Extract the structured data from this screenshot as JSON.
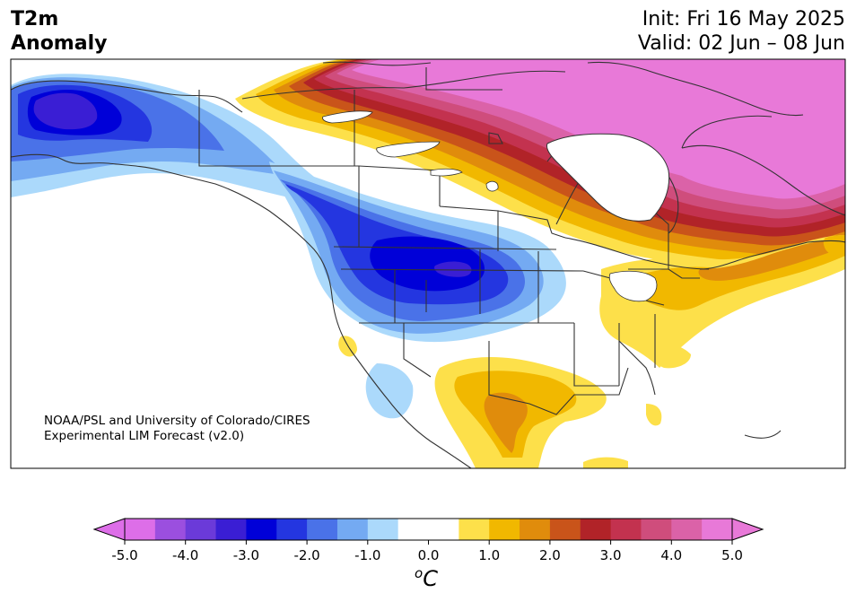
{
  "header": {
    "title_line1": "T2m",
    "title_line2": "Anomaly",
    "init": "Init: Fri 16 May 2025",
    "valid": "Valid: 02 Jun – 08 Jun"
  },
  "credit": {
    "line1": "NOAA/PSL and University of Colorado/CIRES",
    "line2": "Experimental LIM Forecast (v2.0)"
  },
  "colorbar": {
    "unit_base": "C",
    "unit_sup": "o",
    "tick_labels": [
      "-5.0",
      "-4.0",
      "-3.0",
      "-2.0",
      "-1.0",
      "0.0",
      "1.0",
      "2.0",
      "3.0",
      "4.0",
      "5.0"
    ],
    "colors": [
      "#dd6ee8",
      "#9b4fdf",
      "#6b3ad9",
      "#3a1ed4",
      "#0000d8",
      "#2436e0",
      "#4a72e8",
      "#74aaf2",
      "#abd9fb",
      "#ffffff",
      "#ffffff",
      "#fde04a",
      "#f1b800",
      "#e08c0c",
      "#c9541a",
      "#b12328",
      "#c3324f",
      "#cf4d7c",
      "#db62a8",
      "#e879d8"
    ],
    "extend_low_color": "#dd6ee8",
    "extend_high_color": "#e879d8"
  },
  "map": {
    "region": "North America",
    "variable": "T2m anomaly",
    "land_color": "#ffffff",
    "border_color": "#333333"
  }
}
